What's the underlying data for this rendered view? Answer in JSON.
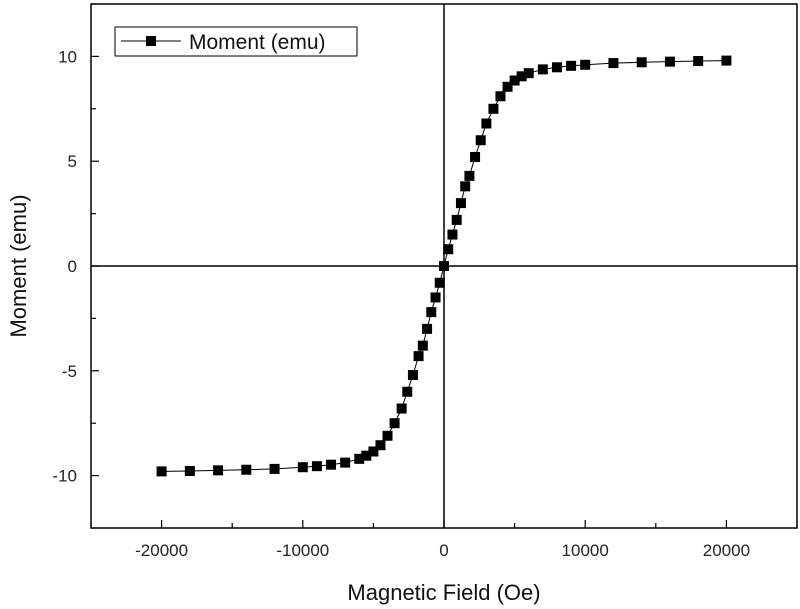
{
  "chart_data": {
    "type": "scatter",
    "title": "",
    "xlabel": "Magnetic Field (Oe)",
    "ylabel": "Moment (emu)",
    "xlim": [
      -25000,
      25000
    ],
    "ylim": [
      -12.5,
      12.5
    ],
    "xticks": [
      -20000,
      -10000,
      0,
      10000,
      20000
    ],
    "xtick_labels": [
      "-20000",
      "-10000",
      "0",
      "10000",
      "20000"
    ],
    "yticks": [
      -10,
      -5,
      0,
      5,
      10
    ],
    "ytick_labels": [
      "-10",
      "-5",
      "0",
      "5",
      "10"
    ],
    "grid": false,
    "zero_lines": true,
    "legend": {
      "position": "top-left",
      "entries": [
        "Moment (emu)"
      ]
    },
    "series": [
      {
        "name": "Moment (emu)",
        "color": "#000000",
        "marker": "square",
        "x": [
          -20000,
          -18000,
          -16000,
          -14000,
          -12000,
          -10000,
          -9000,
          -8000,
          -7000,
          -6000,
          -5500,
          -5000,
          -4500,
          -4000,
          -3500,
          -3000,
          -2600,
          -2200,
          -1800,
          -1500,
          -1200,
          -900,
          -600,
          -300,
          0,
          300,
          600,
          900,
          1200,
          1500,
          1800,
          2200,
          2600,
          3000,
          3500,
          4000,
          4500,
          5000,
          5500,
          6000,
          7000,
          8000,
          9000,
          10000,
          12000,
          14000,
          16000,
          18000,
          20000
        ],
        "y": [
          -9.8,
          -9.78,
          -9.75,
          -9.72,
          -9.68,
          -9.6,
          -9.55,
          -9.48,
          -9.38,
          -9.2,
          -9.05,
          -8.85,
          -8.55,
          -8.1,
          -7.5,
          -6.8,
          -6.0,
          -5.2,
          -4.3,
          -3.8,
          -3.0,
          -2.2,
          -1.5,
          -0.8,
          0.0,
          0.8,
          1.5,
          2.2,
          3.0,
          3.8,
          4.3,
          5.2,
          6.0,
          6.8,
          7.5,
          8.1,
          8.55,
          8.85,
          9.05,
          9.2,
          9.38,
          9.48,
          9.55,
          9.6,
          9.68,
          9.72,
          9.75,
          9.78,
          9.8
        ]
      }
    ]
  },
  "colors": {
    "axis": "#000000",
    "series": "#000000",
    "background": "#ffffff"
  }
}
